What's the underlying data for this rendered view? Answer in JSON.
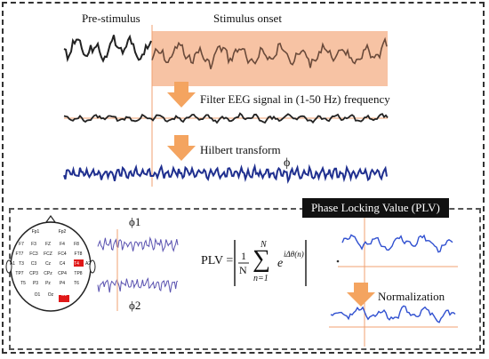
{
  "labels": {
    "pre_stimulus": "Pre-stimulus",
    "stimulus_onset": "Stimulus onset",
    "filter_step": "Filter EEG signal in (1-50 Hz) frequency",
    "hilbert_step": "Hilbert transform",
    "phi": "ϕ",
    "phi1": "ϕ1",
    "phi2": "ϕ2",
    "plv_title": "Phase Locking Value (PLV)",
    "plv_lhs": "PLV =",
    "normalization": "Normalization"
  },
  "formula": {
    "frac_num": "1",
    "frac_den": "N",
    "sum_top": "N",
    "sum_bottom": "n=1",
    "exponent": "iΔθ(n)",
    "base": "e"
  },
  "electrodes": {
    "row1": [
      "Fp1",
      "Fp2"
    ],
    "row2": [
      "F7",
      "F3",
      "FZ",
      "F4",
      "F8"
    ],
    "row3": [
      "FT7",
      "FC3",
      "FCZ",
      "FC4",
      "FT8"
    ],
    "row4": [
      "A1",
      "T3",
      "C3",
      "Cz",
      "C4",
      "T4",
      "A2"
    ],
    "row5": [
      "TP7",
      "CP3",
      "CPz",
      "CP4",
      "TP8"
    ],
    "row6": [
      "T5",
      "P3",
      "Pz",
      "P4",
      "T6"
    ],
    "row7": [
      "O1",
      "Oz",
      "O2"
    ],
    "highlighted": [
      "T4",
      "O2"
    ]
  },
  "colors": {
    "stimulus_band": "#f6b894",
    "arrow": "#f4a460",
    "hilbert_line": "#1f2f8f",
    "plv_line": "#3050d0",
    "highlight": "#e01818",
    "marker_line": "#f0a070"
  }
}
